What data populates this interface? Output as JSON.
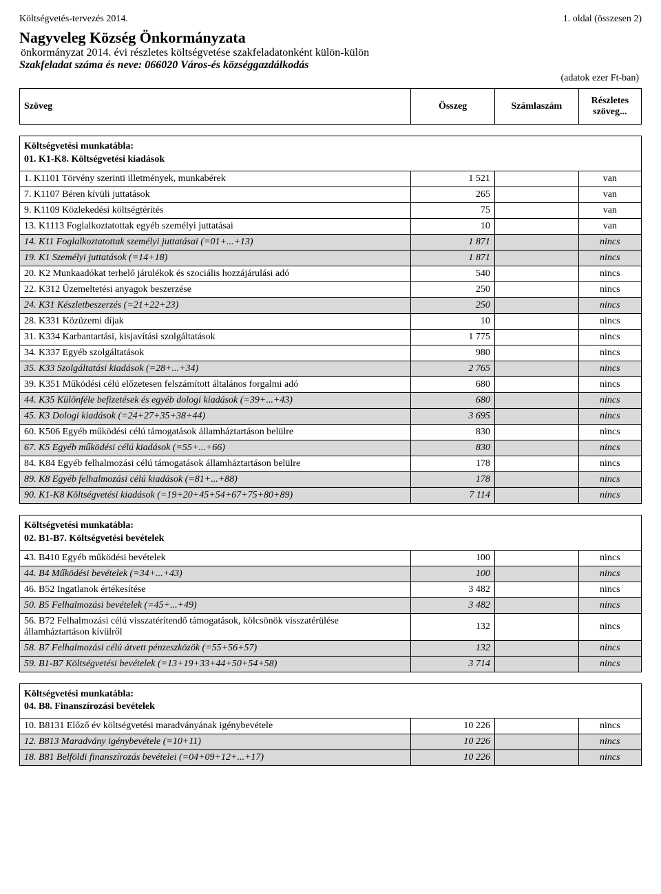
{
  "header": {
    "top_left": "Költségvetés-tervezés 2014.",
    "top_right": "1. oldal (összesen 2)",
    "title": "Nagyveleg Község Önkormányzata",
    "subtitle1": "önkormányzat 2014. évi részletes költségvetése szakfeladatonként külön-külön",
    "subtitle2": "Szakfeladat száma és neve: 066020 Város-és községgazdálkodás",
    "unit_note": "(adatok ezer Ft-ban)"
  },
  "columns": {
    "text": "Szöveg",
    "amount": "Összeg",
    "account": "Számlaszám",
    "detail": "Részletes szöveg..."
  },
  "sections": [
    {
      "heading_line1": "Költségvetési munkatábla:",
      "heading_line2": "01. K1-K8. Költségvetési kiadások",
      "rows": [
        {
          "t": "1. K1101 Törvény szerinti illetmények, munkabérek",
          "a": "1 521",
          "d": "van",
          "s": false
        },
        {
          "t": "7. K1107 Béren kívüli juttatások",
          "a": "265",
          "d": "van",
          "s": false
        },
        {
          "t": "9. K1109 Közlekedési költségtérítés",
          "a": "75",
          "d": "van",
          "s": false
        },
        {
          "t": "13. K1113 Foglalkoztatottak egyéb személyi juttatásai",
          "a": "10",
          "d": "van",
          "s": false
        },
        {
          "t": "14. K11 Foglalkoztatottak személyi juttatásai (=01+...+13)",
          "a": "1 871",
          "d": "nincs",
          "s": true
        },
        {
          "t": "19. K1 Személyi juttatások (=14+18)",
          "a": "1 871",
          "d": "nincs",
          "s": true
        },
        {
          "t": "20. K2 Munkaadókat terhelő járulékok és szociális hozzájárulási adó",
          "a": "540",
          "d": "nincs",
          "s": false
        },
        {
          "t": "22. K312 Üzemeltetési anyagok beszerzése",
          "a": "250",
          "d": "nincs",
          "s": false
        },
        {
          "t": "24. K31 Készletbeszerzés (=21+22+23)",
          "a": "250",
          "d": "nincs",
          "s": true
        },
        {
          "t": "28. K331 Közüzemi díjak",
          "a": "10",
          "d": "nincs",
          "s": false
        },
        {
          "t": "31. K334 Karbantartási, kisjavítási szolgáltatások",
          "a": "1 775",
          "d": "nincs",
          "s": false
        },
        {
          "t": "34. K337 Egyéb szolgáltatások",
          "a": "980",
          "d": "nincs",
          "s": false
        },
        {
          "t": "35. K33 Szolgáltatási kiadások (=28+...+34)",
          "a": "2 765",
          "d": "nincs",
          "s": true
        },
        {
          "t": "39. K351 Működési célú előzetesen felszámított általános forgalmi adó",
          "a": "680",
          "d": "nincs",
          "s": false
        },
        {
          "t": "44. K35 Különféle befizetések és egyéb dologi kiadások (=39+...+43)",
          "a": "680",
          "d": "nincs",
          "s": true
        },
        {
          "t": "45. K3 Dologi kiadások (=24+27+35+38+44)",
          "a": "3 695",
          "d": "nincs",
          "s": true
        },
        {
          "t": "60. K506 Egyéb működési célú támogatások államháztartáson belülre",
          "a": "830",
          "d": "nincs",
          "s": false
        },
        {
          "t": "67. K5 Egyéb működési célú kiadások (=55+...+66)",
          "a": "830",
          "d": "nincs",
          "s": true
        },
        {
          "t": "84. K84 Egyéb felhalmozási célú támogatások államháztartáson belülre",
          "a": "178",
          "d": "nincs",
          "s": false
        },
        {
          "t": "89. K8 Egyéb felhalmozási célú kiadások (=81+...+88)",
          "a": "178",
          "d": "nincs",
          "s": true
        },
        {
          "t": "90. K1-K8 Költségvetési kiadások (=19+20+45+54+67+75+80+89)",
          "a": "7 114",
          "d": "nincs",
          "s": true
        }
      ]
    },
    {
      "heading_line1": "Költségvetési munkatábla:",
      "heading_line2": "02. B1-B7. Költségvetési bevételek",
      "rows": [
        {
          "t": "43. B410 Egyéb működési bevételek",
          "a": "100",
          "d": "nincs",
          "s": false
        },
        {
          "t": "44. B4 Működési bevételek (=34+...+43)",
          "a": "100",
          "d": "nincs",
          "s": true
        },
        {
          "t": "46. B52 Ingatlanok értékesítése",
          "a": "3 482",
          "d": "nincs",
          "s": false
        },
        {
          "t": "50. B5 Felhalmozási bevételek (=45+...+49)",
          "a": "3 482",
          "d": "nincs",
          "s": true
        },
        {
          "t": "56. B72 Felhalmozási célú visszatérítendő támogatások, kölcsönök visszatérülése államháztartáson kívülről",
          "a": "132",
          "d": "nincs",
          "s": false
        },
        {
          "t": "58. B7 Felhalmozási célú átvett pénzeszközök (=55+56+57)",
          "a": "132",
          "d": "nincs",
          "s": true
        },
        {
          "t": "59. B1-B7 Költségvetési bevételek (=13+19+33+44+50+54+58)",
          "a": "3 714",
          "d": "nincs",
          "s": true
        }
      ]
    },
    {
      "heading_line1": "Költségvetési munkatábla:",
      "heading_line2": "04. B8. Finanszírozási bevételek",
      "rows": [
        {
          "t": "10. B8131 Előző év költségvetési maradványának igénybevétele",
          "a": "10 226",
          "d": "nincs",
          "s": false
        },
        {
          "t": "12. B813 Maradvány igénybevétele (=10+11)",
          "a": "10 226",
          "d": "nincs",
          "s": true
        },
        {
          "t": "18. B81 Belföldi finanszírozás bevételei (=04+09+12+...+17)",
          "a": "10 226",
          "d": "nincs",
          "s": true
        }
      ]
    }
  ],
  "colors": {
    "subtotal_bg": "#d9d9d9",
    "background": "#ffffff",
    "text": "#000000",
    "border": "#000000"
  },
  "typography": {
    "body_family": "Times New Roman",
    "body_size_pt": 11,
    "h1_size_pt": 17,
    "subtitle_size_pt": 12
  }
}
